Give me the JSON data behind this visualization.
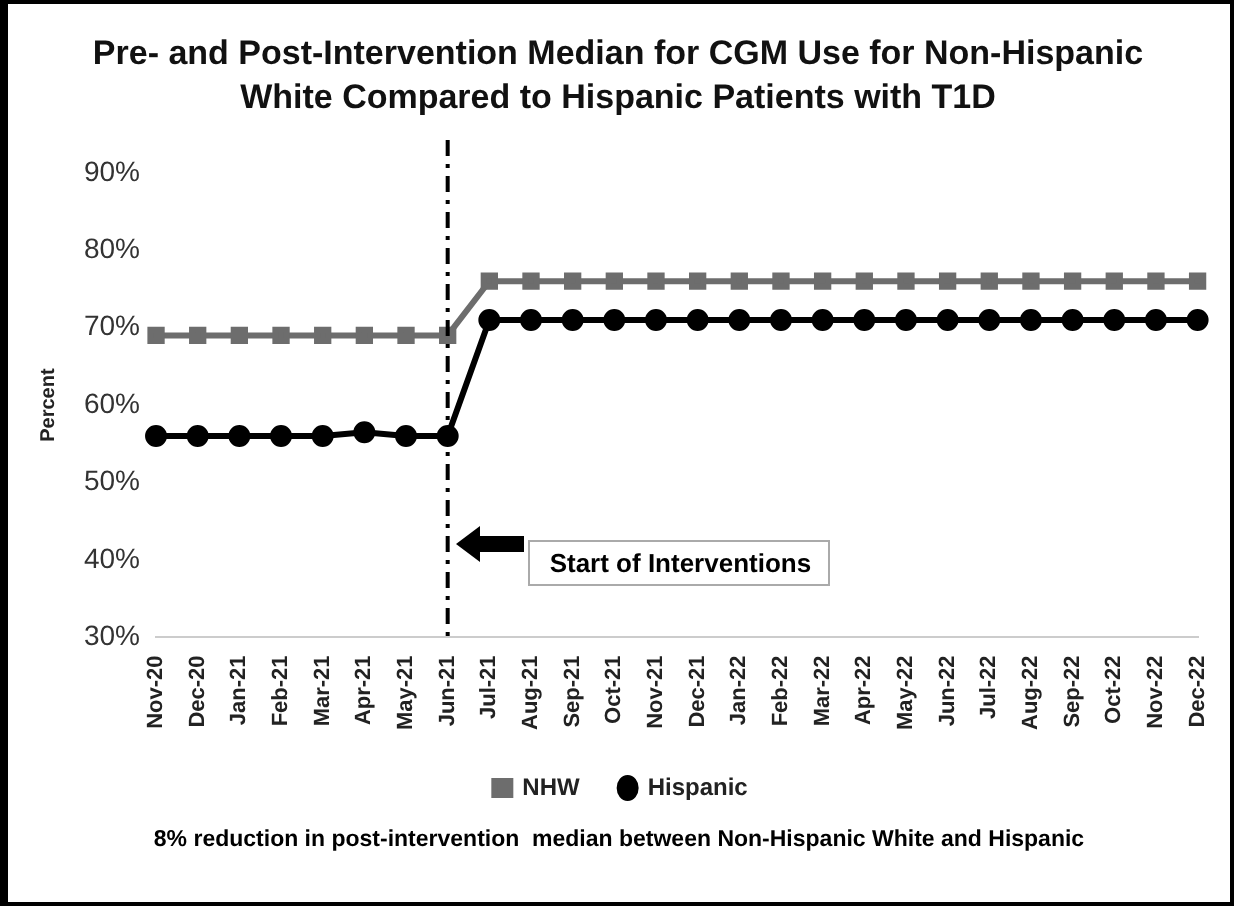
{
  "chart_data": {
    "type": "line",
    "title": "Pre- and Post-Intervention Median for CGM Use for Non-Hispanic White Compared to Hispanic Patients with T1D",
    "ylabel": "Percent",
    "categories": [
      "Nov-20",
      "Dec-20",
      "Jan-21",
      "Feb-21",
      "Mar-21",
      "Apr-21",
      "May-21",
      "Jun-21",
      "Jul-21",
      "Aug-21",
      "Sep-21",
      "Oct-21",
      "Nov-21",
      "Dec-21",
      "Jan-22",
      "Feb-22",
      "Mar-22",
      "Apr-22",
      "May-22",
      "Jun-22",
      "Jul-22",
      "Aug-22",
      "Sep-22",
      "Oct-22",
      "Nov-22",
      "Dec-22"
    ],
    "series": [
      {
        "name": "NHW",
        "color": "#6d6d6d",
        "marker": "square",
        "values": [
          69,
          69,
          69,
          69,
          69,
          69,
          69,
          69,
          76,
          76,
          76,
          76,
          76,
          76,
          76,
          76,
          76,
          76,
          76,
          76,
          76,
          76,
          76,
          76,
          76,
          76
        ]
      },
      {
        "name": "Hispanic",
        "color": "#000000",
        "marker": "circle",
        "values": [
          56,
          56,
          56,
          56,
          56,
          56.5,
          56,
          56,
          71,
          71,
          71,
          71,
          71,
          71,
          71,
          71,
          71,
          71,
          71,
          71,
          71,
          71,
          71,
          71,
          71,
          71
        ]
      }
    ],
    "ylim": [
      30,
      90
    ],
    "yticks": [
      {
        "value": 30,
        "label": "30%"
      },
      {
        "value": 40,
        "label": "40%"
      },
      {
        "value": 50,
        "label": "50%"
      },
      {
        "value": 60,
        "label": "60%"
      },
      {
        "value": 70,
        "label": "70%"
      },
      {
        "value": 80,
        "label": "80%"
      },
      {
        "value": 90,
        "label": "90%"
      }
    ],
    "grid": false,
    "legend": "bottom",
    "line_style": "solid",
    "ref_lines": [
      {
        "axis": "x",
        "value": "Jun-21",
        "color": "#000000",
        "line_style": "dashed"
      }
    ],
    "annotations": [
      "Start of Interventions",
      "8% reduction in post-intervention  median between Non-Hispanic White and Hispanic"
    ]
  }
}
